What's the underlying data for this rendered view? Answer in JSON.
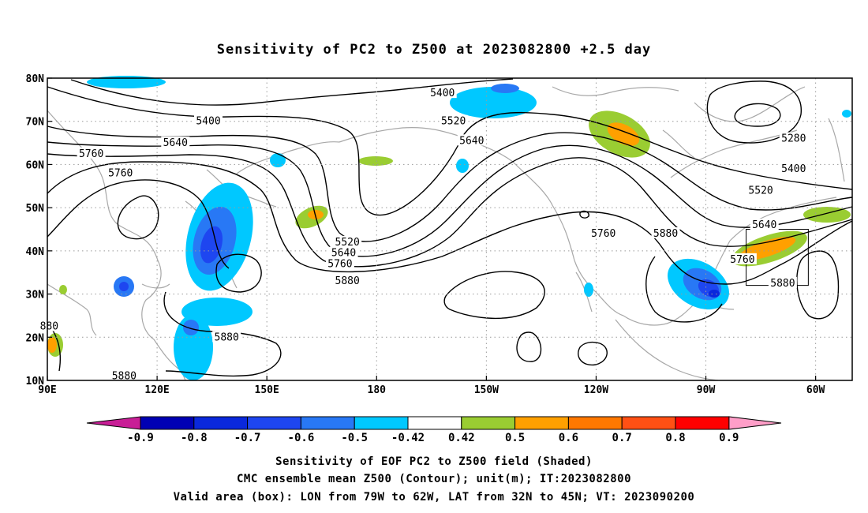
{
  "title": "Sensitivity of PC2 to Z500 at 2023082800 +2.5 day",
  "map": {
    "lon_range": [
      90,
      310
    ],
    "lat_range": [
      10,
      80
    ],
    "projection": "cylindrical",
    "grid": "dotted",
    "lon_ticks": [
      {
        "lon": 90,
        "label": "90E"
      },
      {
        "lon": 120,
        "label": "120E"
      },
      {
        "lon": 150,
        "label": "150E"
      },
      {
        "lon": 180,
        "label": "180"
      },
      {
        "lon": 210,
        "label": "150W"
      },
      {
        "lon": 240,
        "label": "120W"
      },
      {
        "lon": 270,
        "label": "90W"
      },
      {
        "lon": 300,
        "label": "60W"
      }
    ],
    "lat_ticks": [
      {
        "lat": 10,
        "label": "10N"
      },
      {
        "lat": 20,
        "label": "20N"
      },
      {
        "lat": 30,
        "label": "30N"
      },
      {
        "lat": 40,
        "label": "40N"
      },
      {
        "lat": 50,
        "label": "50N"
      },
      {
        "lat": 60,
        "label": "60N"
      },
      {
        "lat": 70,
        "label": "70N"
      },
      {
        "lat": 80,
        "label": "80N"
      }
    ]
  },
  "contour_labels": [
    {
      "text": "5400",
      "lon": 198,
      "lat": 76.5
    },
    {
      "text": "5400",
      "lon": 134,
      "lat": 70
    },
    {
      "text": "5520",
      "lon": 201,
      "lat": 70
    },
    {
      "text": "5280",
      "lon": 294,
      "lat": 66
    },
    {
      "text": "5640",
      "lon": 125,
      "lat": 65
    },
    {
      "text": "5640",
      "lon": 206,
      "lat": 65.5
    },
    {
      "text": "5760",
      "lon": 102,
      "lat": 62.5
    },
    {
      "text": "5400",
      "lon": 294,
      "lat": 59
    },
    {
      "text": "5760",
      "lon": 110,
      "lat": 58
    },
    {
      "text": "5520",
      "lon": 285,
      "lat": 54
    },
    {
      "text": "5640",
      "lon": 286,
      "lat": 46
    },
    {
      "text": "5520",
      "lon": 172,
      "lat": 42
    },
    {
      "text": "5640",
      "lon": 171,
      "lat": 39.5
    },
    {
      "text": "5760",
      "lon": 242,
      "lat": 44
    },
    {
      "text": "5880",
      "lon": 259,
      "lat": 44
    },
    {
      "text": "5760",
      "lon": 170,
      "lat": 37
    },
    {
      "text": "5760",
      "lon": 280,
      "lat": 38
    },
    {
      "text": "5880",
      "lon": 172,
      "lat": 33
    },
    {
      "text": "5880",
      "lon": 291,
      "lat": 32.5
    },
    {
      "text": "5880",
      "lon": 139,
      "lat": 20
    },
    {
      "text": "880",
      "lon": 90.5,
      "lat": 22.5
    },
    {
      "text": "5880",
      "lon": 111,
      "lat": 11
    }
  ],
  "valid_box": {
    "lon_min": 281,
    "lon_max": 298,
    "lat_min": 32,
    "lat_max": 45
  },
  "colorbar": {
    "labels": [
      "-0.9",
      "-0.8",
      "-0.7",
      "-0.6",
      "-0.5",
      "-0.42",
      "0.42",
      "0.5",
      "0.6",
      "0.7",
      "0.8",
      "0.9"
    ],
    "colors": [
      "#0000b4",
      "#0a28dc",
      "#1e46f0",
      "#2878f5",
      "#00c8ff",
      "#ffffff",
      "#9acd32",
      "#ffa000",
      "#ff7800",
      "#ff5014",
      "#ff0000"
    ],
    "low_end_color": "#c81e96",
    "high_end_color": "#ff9ec8"
  },
  "captions": [
    "Sensitivity of EOF PC2 to Z500 field (Shaded)",
    "CMC ensemble mean Z500 (Contour); unit(m); IT:2023082800",
    "Valid area (box): LON from 79W to 62W, LAT from 32N to 45N; VT: 2023090200"
  ]
}
